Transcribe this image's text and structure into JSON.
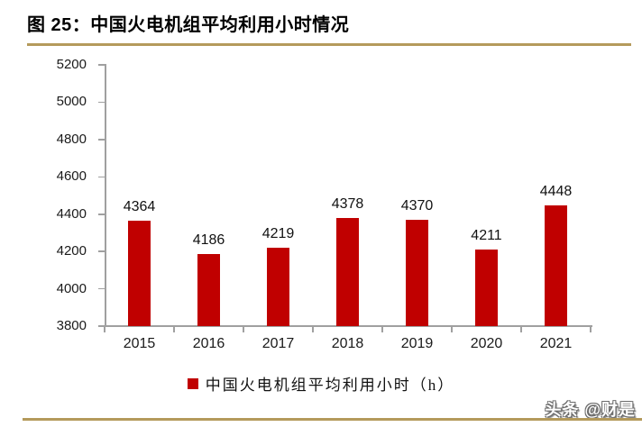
{
  "header": {
    "title": "图 25：中国火电机组平均利用小时情况"
  },
  "chart_data": {
    "type": "bar",
    "title": "中国火电机组平均利用小时情况",
    "categories": [
      "2015",
      "2016",
      "2017",
      "2018",
      "2019",
      "2020",
      "2021"
    ],
    "values": [
      4364,
      4186,
      4219,
      4378,
      4370,
      4211,
      4448
    ],
    "legend": "中国火电机组平均利用小时（h）",
    "legend_position": "bottom",
    "xlabel": "",
    "ylabel": "",
    "ylim": [
      3800,
      5200
    ],
    "y_ticks": [
      5200,
      5000,
      4800,
      4600,
      4400,
      4200,
      4000,
      3800
    ],
    "grid": false,
    "data_labels": true,
    "bar_color": "#C00000",
    "axis_color": "#A0A0A0"
  },
  "footer": {
    "watermark": "头条 @财是"
  },
  "colors": {
    "accent_gold": "#B49A5B",
    "bar_red": "#C00000",
    "axis_gray": "#A0A0A0"
  }
}
